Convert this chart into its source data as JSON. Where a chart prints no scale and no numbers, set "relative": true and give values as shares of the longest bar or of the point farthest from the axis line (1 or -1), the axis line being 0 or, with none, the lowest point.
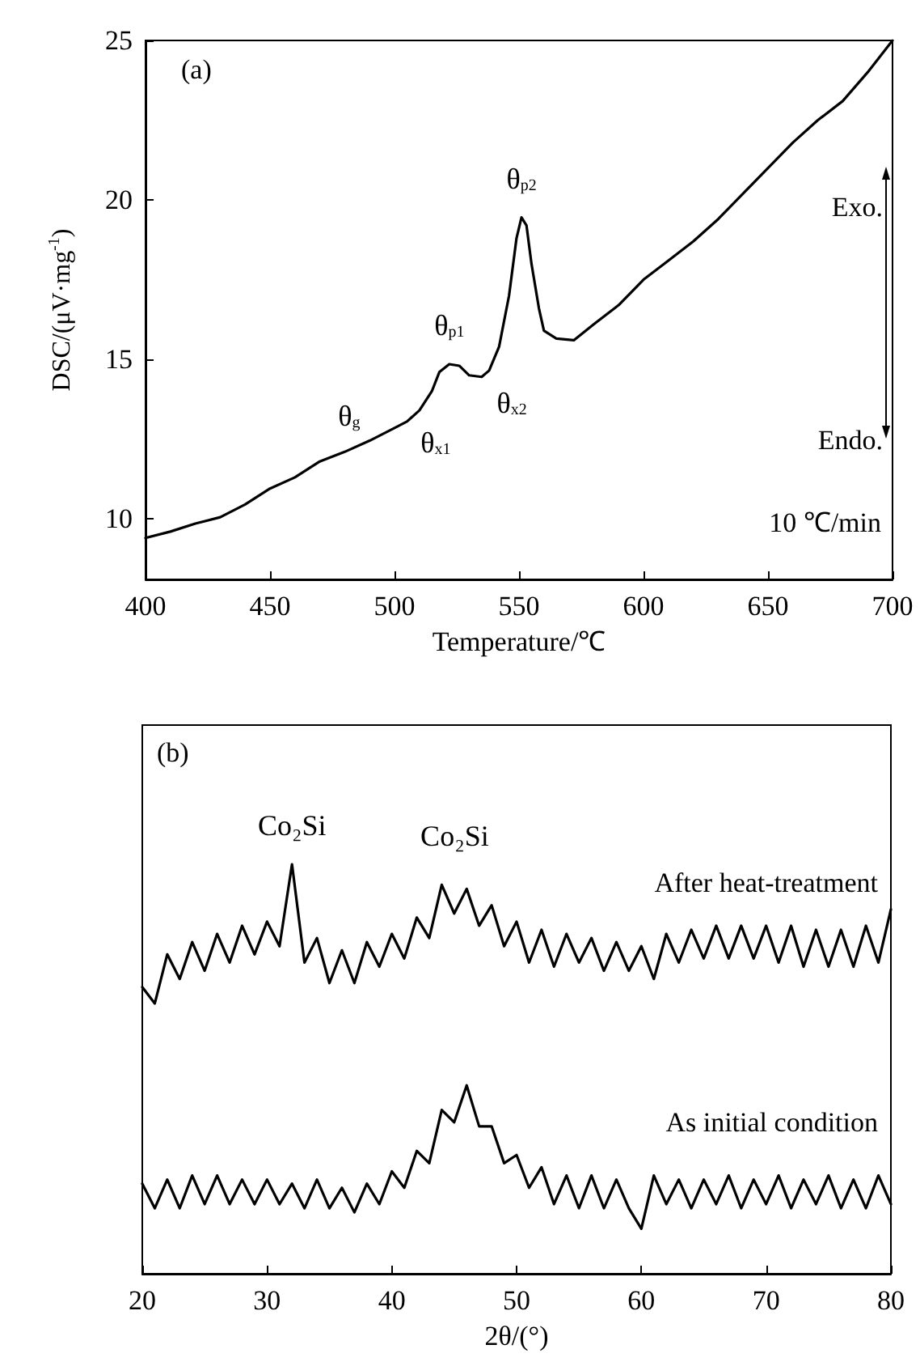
{
  "chart_data": [
    {
      "type": "line",
      "xlabel": "Temperature/℃",
      "ylabel": "DSC/(μV·mg$^{-1}$)",
      "xlim": [
        400,
        700
      ],
      "xticks": [
        400,
        450,
        500,
        550,
        600,
        650,
        700
      ],
      "ylim": [
        8.1,
        25
      ],
      "yticks": [
        10,
        15,
        20,
        25
      ],
      "grid": false,
      "legend": false,
      "marker": "none",
      "line_style": "solid",
      "x": [
        400,
        410,
        420,
        430,
        440,
        450,
        460,
        470,
        480,
        490,
        500,
        505,
        510,
        515,
        518,
        522,
        526,
        530,
        535,
        538,
        542,
        546,
        549,
        551,
        553,
        555,
        558,
        560,
        565,
        572,
        580,
        590,
        600,
        610,
        620,
        630,
        640,
        650,
        660,
        670,
        680,
        690,
        700
      ],
      "series": [
        {
          "color": "#000000",
          "values": [
            9.4,
            9.6,
            9.85,
            10.05,
            10.45,
            10.95,
            11.3,
            11.8,
            12.1,
            12.45,
            12.85,
            13.05,
            13.4,
            14.0,
            14.6,
            14.85,
            14.8,
            14.5,
            14.45,
            14.65,
            15.4,
            17.0,
            18.8,
            19.45,
            19.2,
            18.0,
            16.6,
            15.9,
            15.65,
            15.6,
            16.1,
            16.7,
            17.5,
            18.1,
            18.7,
            19.4,
            20.2,
            21.0,
            21.8,
            22.5,
            23.1,
            24.0,
            25.0
          ]
        }
      ],
      "annotations": [
        "(a)",
        "Exo.",
        "Endo.",
        "10 ℃/min",
        {
          "text": "θ$_{g}$",
          "x": 485,
          "y": 12.3
        },
        {
          "text": "θ$_{x1}$",
          "x": 510,
          "y": 13.4
        },
        {
          "text": "θ$_{p1}$",
          "x": 522,
          "y": 14.85
        },
        {
          "text": "θ$_{x2}$",
          "x": 538,
          "y": 14.65
        },
        {
          "text": "θ$_{p2}$",
          "x": 551,
          "y": 19.45
        }
      ]
    },
    {
      "type": "line",
      "relative": true,
      "tick_labels": "x",
      "xlabel": "2θ/(°)",
      "xlim": [
        20,
        80
      ],
      "xticks": [
        20,
        30,
        40,
        50,
        60,
        70,
        80
      ],
      "grid": false,
      "legend": false,
      "marker": "none",
      "line_style": "solid",
      "x": [
        20,
        21,
        22,
        23,
        24,
        25,
        26,
        27,
        28,
        29,
        30,
        31,
        32,
        33,
        34,
        35,
        36,
        37,
        38,
        39,
        40,
        41,
        42,
        43,
        44,
        45,
        46,
        47,
        48,
        49,
        50,
        51,
        52,
        53,
        54,
        55,
        56,
        57,
        58,
        59,
        60,
        61,
        62,
        63,
        64,
        65,
        66,
        67,
        68,
        69,
        70,
        71,
        72,
        73,
        74,
        75,
        76,
        77,
        78,
        79,
        80
      ],
      "series": [
        {
          "name": "After heat-treatment",
          "color": "#000000",
          "values": [
            0.7,
            0.66,
            0.78,
            0.72,
            0.81,
            0.74,
            0.83,
            0.76,
            0.85,
            0.78,
            0.86,
            0.8,
            1.0,
            0.76,
            0.82,
            0.71,
            0.79,
            0.71,
            0.81,
            0.75,
            0.83,
            0.77,
            0.87,
            0.82,
            0.95,
            0.88,
            0.94,
            0.85,
            0.9,
            0.8,
            0.86,
            0.76,
            0.84,
            0.75,
            0.83,
            0.76,
            0.82,
            0.74,
            0.81,
            0.74,
            0.8,
            0.72,
            0.83,
            0.76,
            0.84,
            0.77,
            0.85,
            0.77,
            0.85,
            0.77,
            0.85,
            0.76,
            0.85,
            0.75,
            0.84,
            0.75,
            0.84,
            0.75,
            0.85,
            0.76,
            0.89
          ]
        },
        {
          "name": "As initial condition",
          "color": "#000000",
          "values": [
            0.22,
            0.16,
            0.23,
            0.16,
            0.24,
            0.17,
            0.24,
            0.17,
            0.23,
            0.17,
            0.23,
            0.17,
            0.22,
            0.16,
            0.23,
            0.16,
            0.21,
            0.15,
            0.22,
            0.17,
            0.25,
            0.21,
            0.3,
            0.27,
            0.4,
            0.37,
            0.46,
            0.36,
            0.36,
            0.27,
            0.29,
            0.21,
            0.26,
            0.17,
            0.24,
            0.16,
            0.24,
            0.16,
            0.23,
            0.16,
            0.11,
            0.24,
            0.17,
            0.23,
            0.16,
            0.23,
            0.17,
            0.24,
            0.16,
            0.23,
            0.17,
            0.24,
            0.16,
            0.23,
            0.17,
            0.24,
            0.16,
            0.23,
            0.16,
            0.24,
            0.17
          ]
        }
      ],
      "annotations": [
        "(b)",
        {
          "text": "Co₂Si",
          "x": 32,
          "y": 1.0
        },
        {
          "text": "Co₂Si",
          "x": 44,
          "y": 0.95
        }
      ]
    }
  ]
}
